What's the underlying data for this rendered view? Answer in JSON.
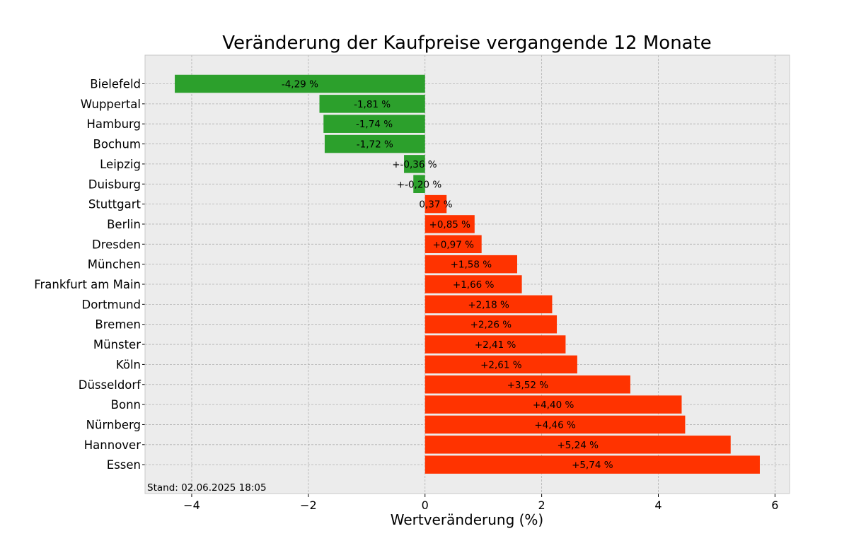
{
  "chart_data": {
    "type": "bar",
    "orientation": "horizontal",
    "title": "Veränderung der Kaufpreise vergangende 12 Monate",
    "xlabel": "Wertveränderung (%)",
    "ylabel": "",
    "xlim": [
      -4.8,
      6.25
    ],
    "xticks": [
      -4,
      -2,
      0,
      2,
      4,
      6
    ],
    "xtick_labels": [
      "−4",
      "−2",
      "0",
      "2",
      "4",
      "6"
    ],
    "grid": true,
    "annotation": "Stand: 02.06.2025 18:05",
    "colors": {
      "negative": "#2ca02c",
      "positive": "#ff3300",
      "plot_background": "#ececec",
      "grid": "#b0b0b0"
    },
    "categories": [
      "Bielefeld",
      "Wuppertal",
      "Hamburg",
      "Bochum",
      "Leipzig",
      "Duisburg",
      "Stuttgart",
      "Berlin",
      "Dresden",
      "München",
      "Frankfurt am Main",
      "Dortmund",
      "Bremen",
      "Münster",
      "Köln",
      "Düsseldorf",
      "Bonn",
      "Nürnberg",
      "Hannover",
      "Essen"
    ],
    "values": [
      -4.29,
      -1.81,
      -1.74,
      -1.72,
      -0.36,
      -0.2,
      0.37,
      0.85,
      0.97,
      1.58,
      1.66,
      2.18,
      2.26,
      2.41,
      2.61,
      3.52,
      4.4,
      4.46,
      5.24,
      5.74
    ],
    "data_labels": [
      "-4,29 %",
      "-1,81 %",
      "-1,74 %",
      "-1,72 %",
      "+-0,36 %",
      "+-0,20 %",
      "0,37 %",
      "+0,85 %",
      "+0,97 %",
      "+1,58 %",
      "+1,66 %",
      "+2,18 %",
      "+2,26 %",
      "+2,41 %",
      "+2,61 %",
      "+3,52 %",
      "+4,40 %",
      "+4,46 %",
      "+5,24 %",
      "+5,74 %"
    ]
  }
}
